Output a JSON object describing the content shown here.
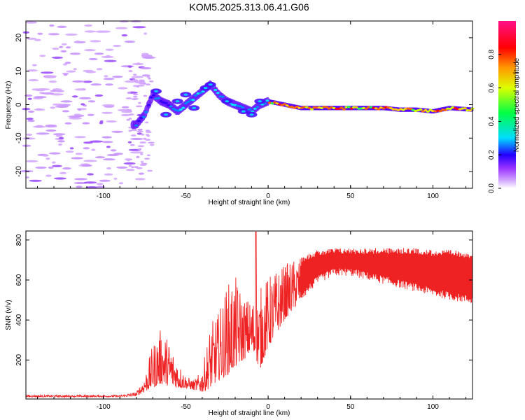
{
  "title": "KOM5.2025.313.06.41.G06",
  "chart_data": [
    {
      "type": "heatmap",
      "title": "KOM5.2025.313.06.41.G06",
      "xlabel": "Height of straight line (km)",
      "ylabel": "Frequency (Hz)",
      "xlim": [
        -147,
        124
      ],
      "ylim": [
        -25,
        25
      ],
      "xticks": [
        -100,
        -50,
        0,
        50,
        100
      ],
      "yticks": [
        -20,
        -10,
        0,
        10,
        20
      ],
      "ridge": {
        "x": [
          -80,
          -75,
          -70,
          -65,
          -60,
          -55,
          -50,
          -45,
          -40,
          -35,
          -30,
          -25,
          -20,
          -15,
          -10,
          -5,
          0,
          10,
          20,
          30,
          40,
          50,
          60,
          70,
          80,
          90,
          100,
          110,
          124
        ],
        "freq": [
          -6,
          -3,
          3,
          1,
          0,
          -2,
          0,
          2,
          4,
          6,
          3,
          1,
          0,
          -1,
          -2,
          0,
          1,
          0,
          -1,
          -1,
          -1,
          -1,
          -1,
          -1,
          -1.5,
          -1.5,
          -2,
          -1,
          -1.5
        ]
      },
      "colorbar": {
        "label": "Normalized spectral amplitude",
        "range": [
          0.0,
          1.0
        ],
        "ticks": [
          "0.0",
          "0.2",
          "0.4",
          "0.6",
          "0.8"
        ],
        "colors": [
          "#ffffff",
          "#c080ff",
          "#8000ff",
          "#0000ff",
          "#00ffff",
          "#00ff00",
          "#ffff00",
          "#ff8000",
          "#ff0000",
          "#ff0080"
        ]
      }
    },
    {
      "type": "line",
      "xlabel": "Height of straight line (km)",
      "ylabel": "SNR (v/v)",
      "xlim": [
        -147,
        124
      ],
      "ylim": [
        5,
        845
      ],
      "xticks": [
        -100,
        -50,
        0,
        50,
        100
      ],
      "yticks": [
        200,
        400,
        600,
        800
      ],
      "color": "#ee2222",
      "envelope": {
        "x": [
          -147,
          -90,
          -80,
          -75,
          -70,
          -65,
          -60,
          -55,
          -50,
          -45,
          -40,
          -35,
          -30,
          -25,
          -20,
          -15,
          -10,
          -5,
          0,
          10,
          20,
          30,
          40,
          50,
          60,
          70,
          80,
          90,
          100,
          110,
          124
        ],
        "low": [
          15,
          15,
          20,
          40,
          60,
          80,
          70,
          60,
          60,
          50,
          40,
          60,
          100,
          120,
          160,
          200,
          240,
          150,
          260,
          400,
          500,
          580,
          620,
          620,
          600,
          580,
          560,
          540,
          520,
          500,
          480
        ],
        "high": [
          25,
          25,
          40,
          120,
          280,
          360,
          300,
          200,
          120,
          100,
          150,
          380,
          440,
          580,
          620,
          520,
          500,
          560,
          620,
          680,
          720,
          750,
          760,
          760,
          760,
          760,
          760,
          760,
          750,
          750,
          740
        ]
      }
    }
  ]
}
